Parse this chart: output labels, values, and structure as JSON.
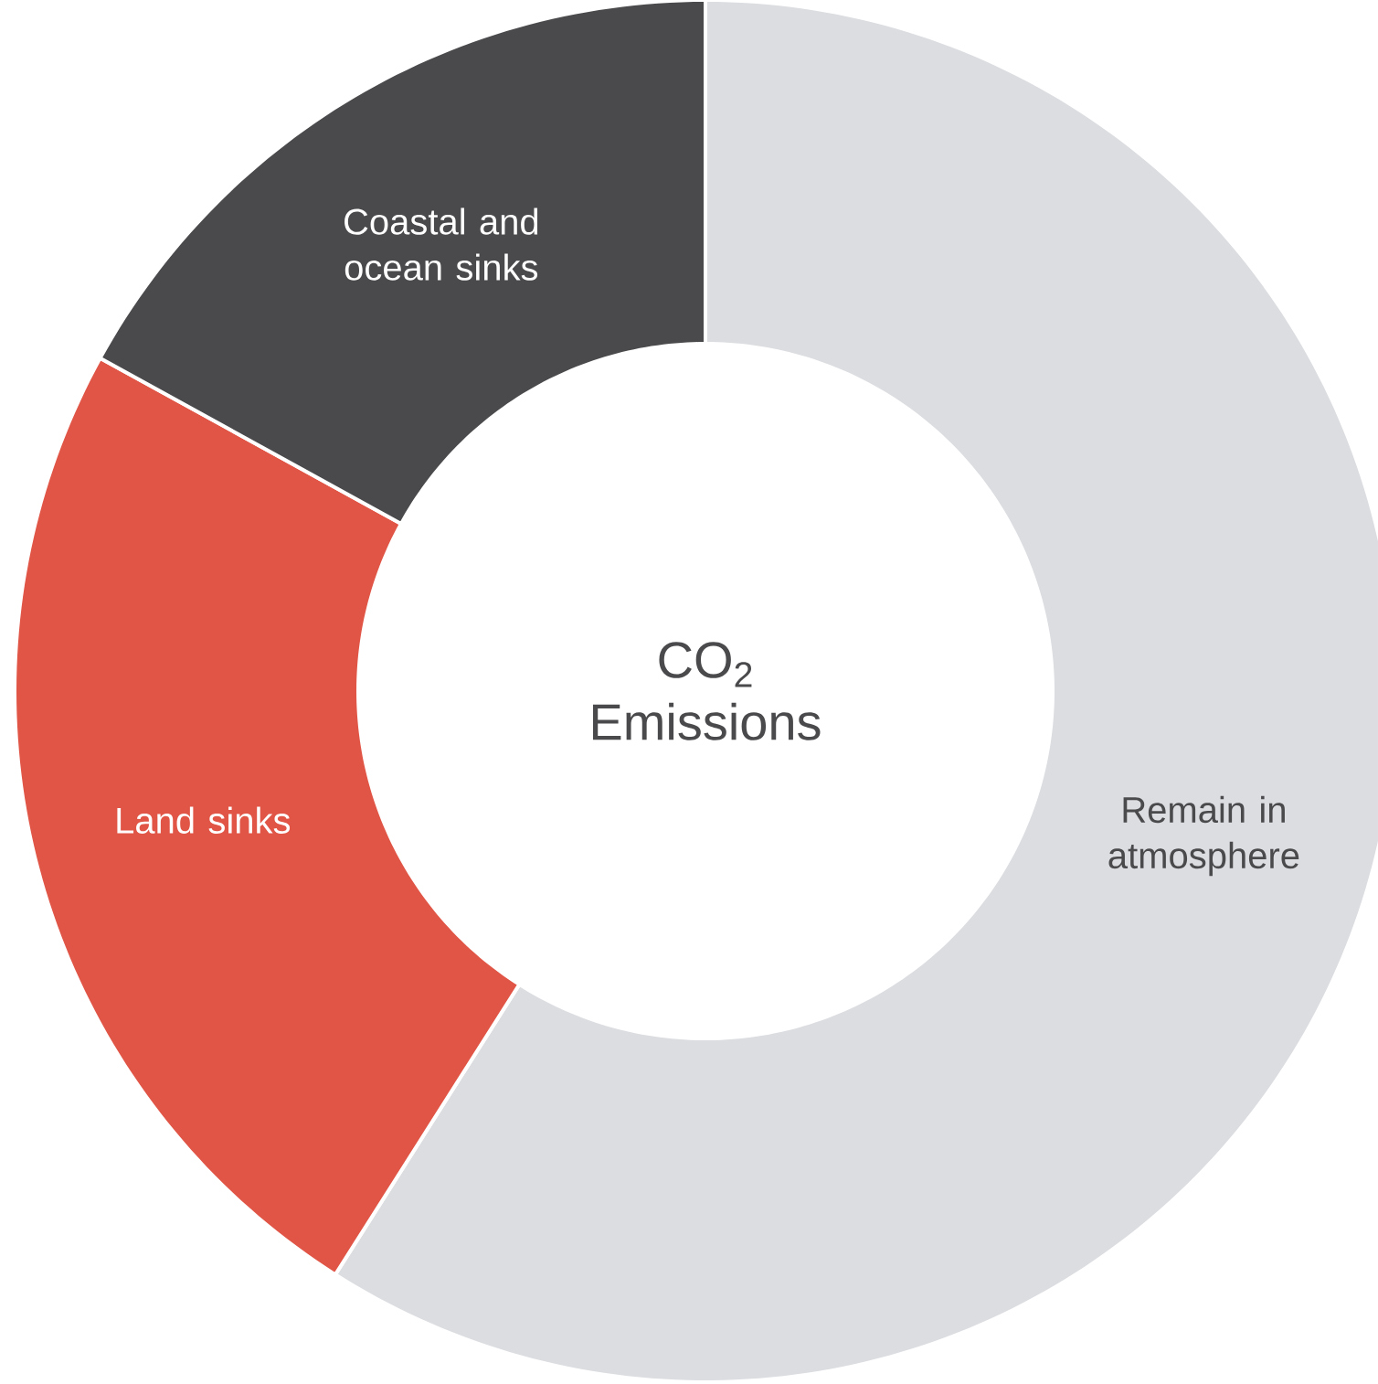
{
  "chart_data": {
    "type": "donut",
    "title": "CO$_{2}$ Emissions",
    "categories": [
      "Remain in atmosphere",
      "Land sinks",
      "Coastal and ocean sinks"
    ],
    "values": [
      59,
      24,
      17
    ],
    "colors": [
      "#dcdde1",
      "#e05546",
      "#4a4a4c"
    ]
  }
}
